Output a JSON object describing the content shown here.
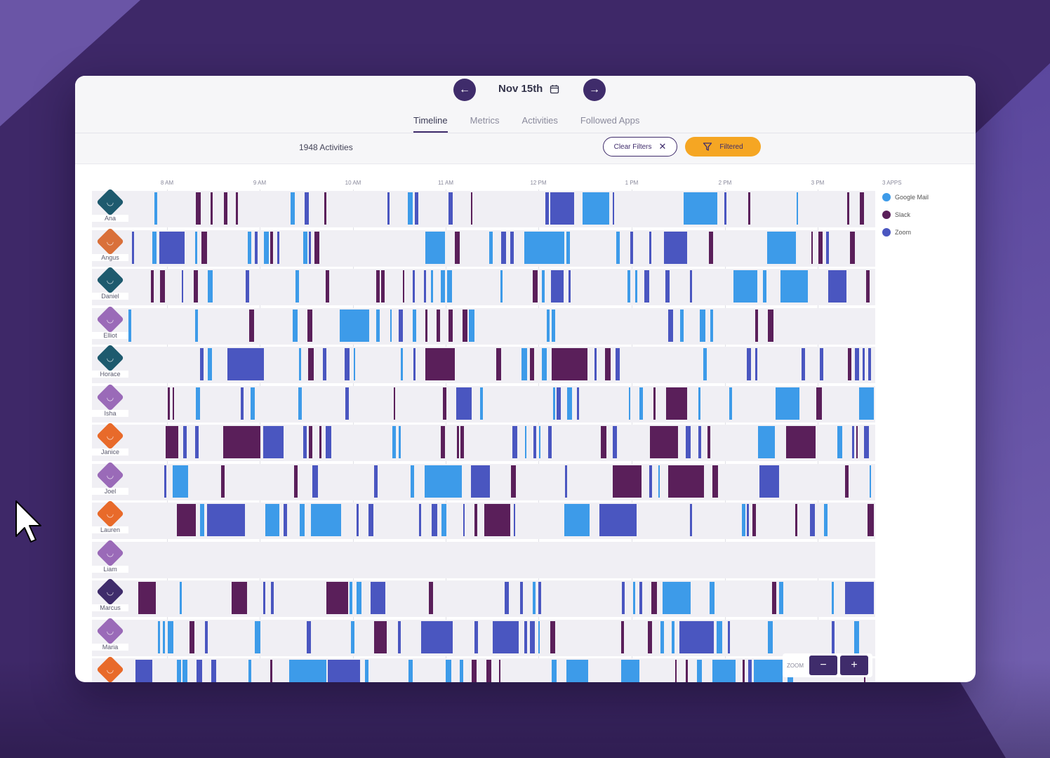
{
  "header": {
    "date": "Nov 15th",
    "tabs": [
      {
        "label": "Timeline",
        "active": true
      },
      {
        "label": "Metrics",
        "active": false
      },
      {
        "label": "Activities",
        "active": false
      },
      {
        "label": "Followed Apps",
        "active": false
      }
    ]
  },
  "filterbar": {
    "activity_count": "1948 Activities",
    "clear_label": "Clear Filters",
    "filtered_label": "Filtered"
  },
  "timeline": {
    "ticks": [
      "8 AM",
      "9 AM",
      "10 AM",
      "11 AM",
      "12 PM",
      "1 PM",
      "2 PM",
      "3 PM"
    ],
    "users": [
      {
        "name": "Ana",
        "color": "#1e5a6e"
      },
      {
        "name": "Angus",
        "color": "#d9703a"
      },
      {
        "name": "Daniel",
        "color": "#1e5a6e"
      },
      {
        "name": "Elliot",
        "color": "#9a6ab8"
      },
      {
        "name": "Horace",
        "color": "#1e5a6e"
      },
      {
        "name": "Isha",
        "color": "#9a6ab8"
      },
      {
        "name": "Janice",
        "color": "#e86a2a"
      },
      {
        "name": "Joel",
        "color": "#9a6ab8"
      },
      {
        "name": "Lauren",
        "color": "#e86a2a"
      },
      {
        "name": "Liam",
        "color": "#9a6ab8"
      },
      {
        "name": "Marcus",
        "color": "#3f2c6b"
      },
      {
        "name": "Maria",
        "color": "#9a6ab8"
      },
      {
        "name": "",
        "color": "#e86a2a"
      }
    ]
  },
  "legend": {
    "title": "3 APPS",
    "apps": [
      {
        "name": "Google Mail",
        "color": "#3d9be9"
      },
      {
        "name": "Slack",
        "color": "#5a1f5a"
      },
      {
        "name": "Zoom",
        "color": "#4a56c0"
      }
    ]
  },
  "zoom": {
    "label": "ZOOM",
    "minus": "−",
    "plus": "+"
  }
}
